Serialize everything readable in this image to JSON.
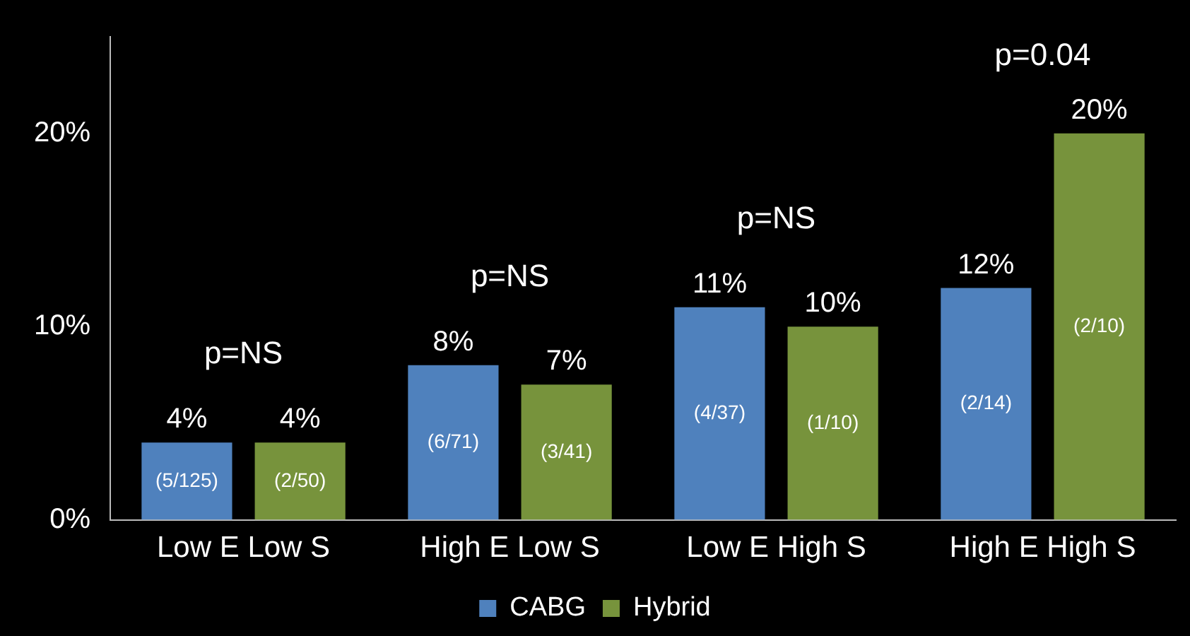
{
  "chart_data": {
    "type": "bar",
    "categories": [
      "Low E Low S",
      "High E Low S",
      "Low E High S",
      "High E High S"
    ],
    "series": [
      {
        "name": "CABG",
        "color": "#4f81bd",
        "values": [
          4,
          8,
          11,
          12
        ],
        "value_labels": [
          "4%",
          "8%",
          "11%",
          "12%"
        ]
      },
      {
        "name": "Hybrid",
        "color": "#77933c",
        "values": [
          4,
          7,
          10,
          20
        ],
        "value_labels": [
          "4%",
          "7%",
          "10%",
          "20%"
        ]
      }
    ],
    "ylim": [
      0,
      25
    ],
    "yticks": [
      {
        "value": 0,
        "label": "0%"
      },
      {
        "value": 10,
        "label": "10%"
      },
      {
        "value": 20,
        "label": "20%"
      }
    ],
    "grid": false,
    "legend": "bottom",
    "annotations": [
      "(5/125)",
      "(2/50)",
      "(6/71)",
      "(3/41)",
      "(4/37)",
      "(1/10)",
      "(2/14)",
      "(2/10)",
      "p=NS",
      "p=NS",
      "p=NS",
      "p=0.04"
    ]
  }
}
